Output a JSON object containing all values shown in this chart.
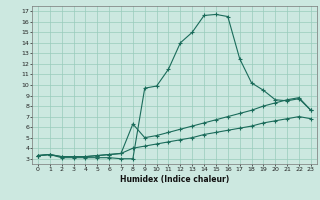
{
  "xlabel": "Humidex (Indice chaleur)",
  "bg_color": "#cce8e0",
  "grid_color": "#99ccbb",
  "line_color": "#1a6b5a",
  "xlim": [
    -0.5,
    23.5
  ],
  "ylim": [
    2.5,
    17.5
  ],
  "xticks": [
    0,
    1,
    2,
    3,
    4,
    5,
    6,
    7,
    8,
    9,
    10,
    11,
    12,
    13,
    14,
    15,
    16,
    17,
    18,
    19,
    20,
    21,
    22,
    23
  ],
  "yticks": [
    3,
    4,
    5,
    6,
    7,
    8,
    9,
    10,
    11,
    12,
    13,
    14,
    15,
    16,
    17
  ],
  "line1_x": [
    0,
    1,
    2,
    3,
    4,
    5,
    6,
    7,
    8,
    9,
    10,
    11,
    12,
    13,
    14,
    15,
    16,
    17,
    18,
    19,
    20,
    21,
    22,
    23
  ],
  "line1_y": [
    3.3,
    3.4,
    3.1,
    3.1,
    3.1,
    3.1,
    3.1,
    3.0,
    3.0,
    9.7,
    9.9,
    11.5,
    14.0,
    15.0,
    16.6,
    16.7,
    16.5,
    12.5,
    10.2,
    9.5,
    8.6,
    8.5,
    8.7,
    7.6
  ],
  "line2_x": [
    0,
    1,
    2,
    3,
    4,
    5,
    6,
    7,
    8,
    9,
    10,
    11,
    12,
    13,
    14,
    15,
    16,
    17,
    18,
    19,
    20,
    21,
    22,
    23
  ],
  "line2_y": [
    3.3,
    3.4,
    3.2,
    3.2,
    3.2,
    3.3,
    3.4,
    3.5,
    6.3,
    5.0,
    5.2,
    5.5,
    5.8,
    6.1,
    6.4,
    6.7,
    7.0,
    7.3,
    7.6,
    8.0,
    8.3,
    8.6,
    8.8,
    7.6
  ],
  "line3_x": [
    0,
    1,
    2,
    3,
    4,
    5,
    6,
    7,
    8,
    9,
    10,
    11,
    12,
    13,
    14,
    15,
    16,
    17,
    18,
    19,
    20,
    21,
    22,
    23
  ],
  "line3_y": [
    3.3,
    3.4,
    3.2,
    3.2,
    3.2,
    3.3,
    3.4,
    3.5,
    4.0,
    4.2,
    4.4,
    4.6,
    4.8,
    5.0,
    5.3,
    5.5,
    5.7,
    5.9,
    6.1,
    6.4,
    6.6,
    6.8,
    7.0,
    6.8
  ]
}
